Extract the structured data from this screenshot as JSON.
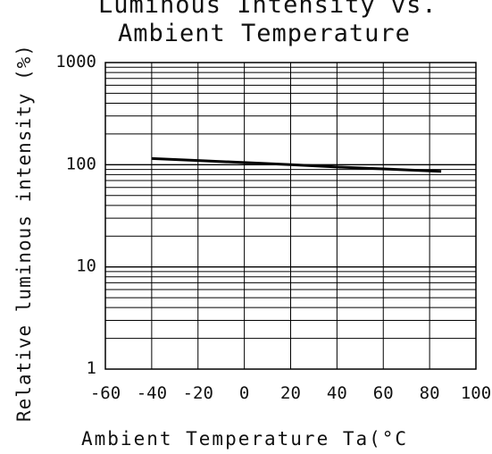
{
  "chart_data": {
    "type": "line",
    "title_lines": [
      "Luminous Intensity vs.",
      "Ambient Temperature"
    ],
    "xlabel": "Ambient Temperature Ta(°C",
    "ylabel": "Relative luminous intensity (%)",
    "xlim": [
      -60,
      100
    ],
    "ylim": [
      1,
      1000
    ],
    "yscale": "log",
    "grid": true,
    "x_ticks": [
      "-60",
      "-40",
      "-20",
      "0",
      "20",
      "40",
      "60",
      "80",
      "100"
    ],
    "y_ticks": [
      "1000",
      "100",
      "10",
      "1"
    ],
    "series": [
      {
        "x": [
          -40,
          -20,
          0,
          20,
          40,
          60,
          85
        ],
        "y": [
          115,
          110,
          105,
          100,
          95,
          91,
          86
        ]
      }
    ],
    "line_color": "#000000"
  }
}
